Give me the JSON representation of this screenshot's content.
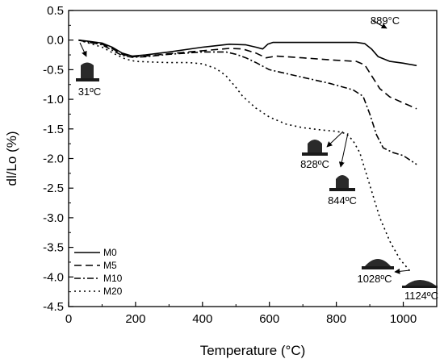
{
  "chart_data": {
    "type": "line",
    "xlabel": "Temperature (°C)",
    "ylabel": "dl/Lo (%)",
    "xlim": [
      0,
      1100
    ],
    "ylim": [
      -4.5,
      0.5
    ],
    "xticks": [
      0,
      200,
      400,
      600,
      800,
      1000
    ],
    "yticks": [
      0.5,
      0.0,
      -0.5,
      -1.0,
      -1.5,
      -2.0,
      -2.5,
      -3.0,
      -3.5,
      -4.0,
      -4.5
    ],
    "xtick_labels": [
      "0",
      "200",
      "400",
      "600",
      "800",
      "1000"
    ],
    "ytick_labels": [
      "0.5",
      "0.0",
      "-0.5",
      "-1.0",
      "-1.5",
      "-2.0",
      "-2.5",
      "-3.0",
      "-3.5",
      "-4.0",
      "-4.5"
    ],
    "legend_position": "bottom-left",
    "series": [
      {
        "name": "M0",
        "dash": "solid",
        "points": [
          [
            30,
            0.0
          ],
          [
            60,
            -0.02
          ],
          [
            100,
            -0.05
          ],
          [
            130,
            -0.12
          ],
          [
            160,
            -0.22
          ],
          [
            190,
            -0.27
          ],
          [
            230,
            -0.25
          ],
          [
            300,
            -0.2
          ],
          [
            400,
            -0.12
          ],
          [
            480,
            -0.07
          ],
          [
            530,
            -0.08
          ],
          [
            560,
            -0.12
          ],
          [
            580,
            -0.15
          ],
          [
            595,
            -0.07
          ],
          [
            610,
            -0.04
          ],
          [
            700,
            -0.04
          ],
          [
            800,
            -0.04
          ],
          [
            860,
            -0.04
          ],
          [
            885,
            -0.06
          ],
          [
            905,
            -0.15
          ],
          [
            925,
            -0.28
          ],
          [
            960,
            -0.36
          ],
          [
            1000,
            -0.39
          ],
          [
            1040,
            -0.43
          ]
        ]
      },
      {
        "name": "M5",
        "dash": "dash",
        "points": [
          [
            30,
            0.0
          ],
          [
            60,
            -0.04
          ],
          [
            100,
            -0.07
          ],
          [
            130,
            -0.14
          ],
          [
            160,
            -0.24
          ],
          [
            190,
            -0.28
          ],
          [
            230,
            -0.27
          ],
          [
            300,
            -0.23
          ],
          [
            400,
            -0.18
          ],
          [
            480,
            -0.14
          ],
          [
            520,
            -0.15
          ],
          [
            560,
            -0.22
          ],
          [
            590,
            -0.3
          ],
          [
            620,
            -0.27
          ],
          [
            700,
            -0.3
          ],
          [
            800,
            -0.34
          ],
          [
            860,
            -0.36
          ],
          [
            885,
            -0.42
          ],
          [
            905,
            -0.6
          ],
          [
            930,
            -0.82
          ],
          [
            960,
            -0.96
          ],
          [
            1000,
            -1.06
          ],
          [
            1040,
            -1.16
          ]
        ]
      },
      {
        "name": "M10",
        "dash": "dashdot",
        "points": [
          [
            30,
            0.0
          ],
          [
            60,
            -0.03
          ],
          [
            100,
            -0.08
          ],
          [
            130,
            -0.17
          ],
          [
            160,
            -0.26
          ],
          [
            190,
            -0.29
          ],
          [
            230,
            -0.28
          ],
          [
            300,
            -0.24
          ],
          [
            400,
            -0.2
          ],
          [
            470,
            -0.2
          ],
          [
            500,
            -0.24
          ],
          [
            530,
            -0.3
          ],
          [
            560,
            -0.38
          ],
          [
            600,
            -0.5
          ],
          [
            700,
            -0.63
          ],
          [
            780,
            -0.73
          ],
          [
            850,
            -0.84
          ],
          [
            880,
            -0.95
          ],
          [
            900,
            -1.25
          ],
          [
            920,
            -1.6
          ],
          [
            940,
            -1.82
          ],
          [
            970,
            -1.9
          ],
          [
            1000,
            -1.95
          ],
          [
            1040,
            -2.1
          ]
        ]
      },
      {
        "name": "M20",
        "dash": "dot",
        "points": [
          [
            30,
            0.0
          ],
          [
            60,
            -0.05
          ],
          [
            100,
            -0.12
          ],
          [
            140,
            -0.24
          ],
          [
            170,
            -0.32
          ],
          [
            200,
            -0.36
          ],
          [
            250,
            -0.37
          ],
          [
            300,
            -0.38
          ],
          [
            360,
            -0.38
          ],
          [
            400,
            -0.4
          ],
          [
            440,
            -0.48
          ],
          [
            470,
            -0.6
          ],
          [
            500,
            -0.8
          ],
          [
            520,
            -0.95
          ],
          [
            560,
            -1.15
          ],
          [
            600,
            -1.3
          ],
          [
            650,
            -1.42
          ],
          [
            700,
            -1.48
          ],
          [
            760,
            -1.52
          ],
          [
            800,
            -1.54
          ],
          [
            830,
            -1.58
          ],
          [
            850,
            -1.7
          ],
          [
            870,
            -1.9
          ],
          [
            900,
            -2.45
          ],
          [
            930,
            -3.0
          ],
          [
            960,
            -3.4
          ],
          [
            990,
            -3.7
          ],
          [
            1020,
            -3.9
          ]
        ]
      }
    ],
    "annotations": [
      {
        "label": "31ºC",
        "x": 31,
        "y": 0.0
      },
      {
        "label": "828ºC",
        "x": 828,
        "y": -1.55
      },
      {
        "label": "844ºC",
        "x": 844,
        "y": -1.68
      },
      {
        "label": "889°C",
        "x": 889,
        "y": -0.06
      },
      {
        "label": "1028ºC",
        "x": 1028,
        "y": -3.9
      },
      {
        "label": "1124ºC",
        "x": 1124,
        "y": -4.2
      }
    ]
  }
}
